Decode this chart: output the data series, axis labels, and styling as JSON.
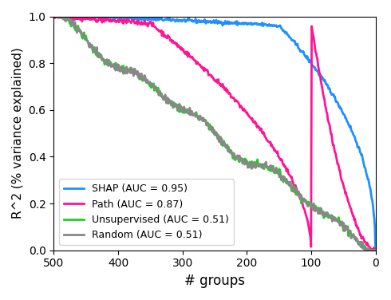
{
  "title": "",
  "xlabel": "# groups",
  "ylabel": "R^2 (% variance explained)",
  "xlim": [
    500,
    0
  ],
  "ylim": [
    0.0,
    1.0
  ],
  "xticks": [
    500,
    400,
    300,
    200,
    100,
    0
  ],
  "yticks": [
    0.0,
    0.2,
    0.4,
    0.6,
    0.8,
    1.0
  ],
  "lines": [
    {
      "label": "SHAP (AUC = 0.95)",
      "color": "#1e90ff"
    },
    {
      "label": "Path (AUC = 0.87)",
      "color": "#ff1493"
    },
    {
      "label": "Unsupervised (AUC = 0.51)",
      "color": "#22cc22"
    },
    {
      "label": "Random (AUC = 0.51)",
      "color": "#888888"
    }
  ],
  "legend_loc": "lower left",
  "linewidth": 2.0
}
